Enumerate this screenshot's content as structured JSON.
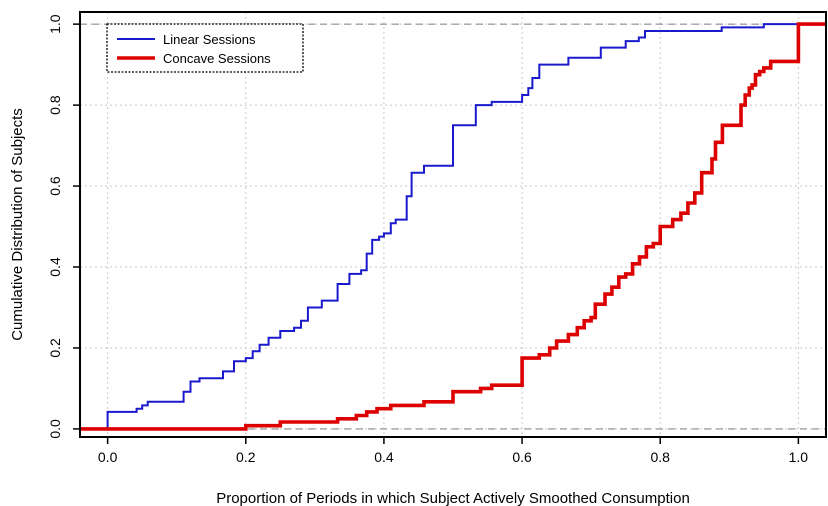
{
  "chart_data": {
    "type": "line",
    "step": true,
    "title": "",
    "xlabel": "Proportion of Periods in which Subject Actively Smoothed Consumption",
    "ylabel": "Cumulative Distribution of Subjects",
    "xlim": [
      -0.04,
      1.04
    ],
    "ylim": [
      -0.02,
      1.03
    ],
    "xticks": [
      0.0,
      0.2,
      0.4,
      0.6,
      0.8,
      1.0
    ],
    "xtick_labels": [
      "0.0",
      "0.2",
      "0.4",
      "0.6",
      "0.8",
      "1.0"
    ],
    "yticks": [
      0.0,
      0.2,
      0.4,
      0.6,
      0.8,
      1.0
    ],
    "ytick_labels": [
      "0.0",
      "0.2",
      "0.4",
      "0.6",
      "0.8",
      "1.0"
    ],
    "grid": true,
    "reference_lines_y": [
      0.0,
      1.0
    ],
    "legend_position": "top-left",
    "series": [
      {
        "name": "Linear Sessions",
        "color": "#1a1acc",
        "points": [
          [
            -0.04,
            0.0
          ],
          [
            0.0,
            0.0
          ],
          [
            0.0,
            0.042
          ],
          [
            0.042,
            0.042
          ],
          [
            0.042,
            0.05
          ],
          [
            0.05,
            0.05
          ],
          [
            0.05,
            0.058
          ],
          [
            0.058,
            0.058
          ],
          [
            0.058,
            0.067
          ],
          [
            0.11,
            0.067
          ],
          [
            0.11,
            0.092
          ],
          [
            0.12,
            0.092
          ],
          [
            0.12,
            0.117
          ],
          [
            0.133,
            0.117
          ],
          [
            0.133,
            0.125
          ],
          [
            0.167,
            0.125
          ],
          [
            0.167,
            0.142
          ],
          [
            0.183,
            0.142
          ],
          [
            0.183,
            0.167
          ],
          [
            0.2,
            0.167
          ],
          [
            0.2,
            0.175
          ],
          [
            0.21,
            0.175
          ],
          [
            0.21,
            0.192
          ],
          [
            0.22,
            0.192
          ],
          [
            0.22,
            0.208
          ],
          [
            0.233,
            0.208
          ],
          [
            0.233,
            0.225
          ],
          [
            0.25,
            0.225
          ],
          [
            0.25,
            0.242
          ],
          [
            0.27,
            0.242
          ],
          [
            0.27,
            0.25
          ],
          [
            0.28,
            0.25
          ],
          [
            0.28,
            0.267
          ],
          [
            0.29,
            0.267
          ],
          [
            0.29,
            0.3
          ],
          [
            0.31,
            0.3
          ],
          [
            0.31,
            0.317
          ],
          [
            0.333,
            0.317
          ],
          [
            0.333,
            0.358
          ],
          [
            0.35,
            0.358
          ],
          [
            0.35,
            0.383
          ],
          [
            0.367,
            0.383
          ],
          [
            0.367,
            0.392
          ],
          [
            0.375,
            0.392
          ],
          [
            0.375,
            0.433
          ],
          [
            0.383,
            0.433
          ],
          [
            0.383,
            0.467
          ],
          [
            0.393,
            0.467
          ],
          [
            0.393,
            0.475
          ],
          [
            0.4,
            0.475
          ],
          [
            0.4,
            0.483
          ],
          [
            0.41,
            0.483
          ],
          [
            0.41,
            0.508
          ],
          [
            0.417,
            0.508
          ],
          [
            0.417,
            0.517
          ],
          [
            0.433,
            0.517
          ],
          [
            0.433,
            0.575
          ],
          [
            0.44,
            0.575
          ],
          [
            0.44,
            0.633
          ],
          [
            0.458,
            0.633
          ],
          [
            0.458,
            0.65
          ],
          [
            0.5,
            0.65
          ],
          [
            0.5,
            0.75
          ],
          [
            0.533,
            0.75
          ],
          [
            0.533,
            0.8
          ],
          [
            0.556,
            0.8
          ],
          [
            0.556,
            0.808
          ],
          [
            0.6,
            0.808
          ],
          [
            0.6,
            0.825
          ],
          [
            0.609,
            0.825
          ],
          [
            0.609,
            0.842
          ],
          [
            0.615,
            0.842
          ],
          [
            0.615,
            0.867
          ],
          [
            0.625,
            0.867
          ],
          [
            0.625,
            0.9
          ],
          [
            0.667,
            0.9
          ],
          [
            0.667,
            0.917
          ],
          [
            0.714,
            0.917
          ],
          [
            0.714,
            0.942
          ],
          [
            0.75,
            0.942
          ],
          [
            0.75,
            0.958
          ],
          [
            0.769,
            0.958
          ],
          [
            0.769,
            0.967
          ],
          [
            0.778,
            0.967
          ],
          [
            0.778,
            0.983
          ],
          [
            0.889,
            0.983
          ],
          [
            0.889,
            0.992
          ],
          [
            0.95,
            0.992
          ],
          [
            0.95,
            1.0
          ],
          [
            1.04,
            1.0
          ]
        ]
      },
      {
        "name": "Concave Sessions",
        "color": "#dd0000",
        "points": [
          [
            -0.04,
            0.0
          ],
          [
            0.2,
            0.0
          ],
          [
            0.2,
            0.008
          ],
          [
            0.25,
            0.008
          ],
          [
            0.25,
            0.017
          ],
          [
            0.333,
            0.017
          ],
          [
            0.333,
            0.025
          ],
          [
            0.36,
            0.025
          ],
          [
            0.36,
            0.033
          ],
          [
            0.375,
            0.033
          ],
          [
            0.375,
            0.042
          ],
          [
            0.39,
            0.042
          ],
          [
            0.39,
            0.05
          ],
          [
            0.41,
            0.05
          ],
          [
            0.41,
            0.058
          ],
          [
            0.458,
            0.058
          ],
          [
            0.458,
            0.067
          ],
          [
            0.5,
            0.067
          ],
          [
            0.5,
            0.092
          ],
          [
            0.54,
            0.092
          ],
          [
            0.54,
            0.1
          ],
          [
            0.556,
            0.1
          ],
          [
            0.556,
            0.108
          ],
          [
            0.6,
            0.108
          ],
          [
            0.6,
            0.175
          ],
          [
            0.625,
            0.175
          ],
          [
            0.625,
            0.183
          ],
          [
            0.64,
            0.183
          ],
          [
            0.64,
            0.2
          ],
          [
            0.65,
            0.2
          ],
          [
            0.65,
            0.217
          ],
          [
            0.667,
            0.217
          ],
          [
            0.667,
            0.233
          ],
          [
            0.68,
            0.233
          ],
          [
            0.68,
            0.25
          ],
          [
            0.69,
            0.25
          ],
          [
            0.69,
            0.267
          ],
          [
            0.7,
            0.267
          ],
          [
            0.7,
            0.275
          ],
          [
            0.706,
            0.275
          ],
          [
            0.706,
            0.308
          ],
          [
            0.72,
            0.308
          ],
          [
            0.72,
            0.333
          ],
          [
            0.73,
            0.333
          ],
          [
            0.73,
            0.35
          ],
          [
            0.74,
            0.35
          ],
          [
            0.74,
            0.375
          ],
          [
            0.75,
            0.375
          ],
          [
            0.75,
            0.383
          ],
          [
            0.76,
            0.383
          ],
          [
            0.76,
            0.408
          ],
          [
            0.77,
            0.408
          ],
          [
            0.77,
            0.425
          ],
          [
            0.78,
            0.425
          ],
          [
            0.78,
            0.45
          ],
          [
            0.79,
            0.45
          ],
          [
            0.79,
            0.458
          ],
          [
            0.8,
            0.458
          ],
          [
            0.8,
            0.5
          ],
          [
            0.818,
            0.5
          ],
          [
            0.818,
            0.517
          ],
          [
            0.83,
            0.517
          ],
          [
            0.83,
            0.533
          ],
          [
            0.84,
            0.533
          ],
          [
            0.84,
            0.558
          ],
          [
            0.85,
            0.558
          ],
          [
            0.85,
            0.583
          ],
          [
            0.86,
            0.583
          ],
          [
            0.86,
            0.633
          ],
          [
            0.875,
            0.633
          ],
          [
            0.875,
            0.667
          ],
          [
            0.88,
            0.667
          ],
          [
            0.88,
            0.708
          ],
          [
            0.89,
            0.708
          ],
          [
            0.89,
            0.75
          ],
          [
            0.917,
            0.75
          ],
          [
            0.917,
            0.8
          ],
          [
            0.923,
            0.8
          ],
          [
            0.923,
            0.825
          ],
          [
            0.929,
            0.825
          ],
          [
            0.929,
            0.842
          ],
          [
            0.933,
            0.842
          ],
          [
            0.933,
            0.85
          ],
          [
            0.938,
            0.85
          ],
          [
            0.938,
            0.875
          ],
          [
            0.944,
            0.875
          ],
          [
            0.944,
            0.883
          ],
          [
            0.95,
            0.883
          ],
          [
            0.95,
            0.892
          ],
          [
            0.96,
            0.892
          ],
          [
            0.96,
            0.908
          ],
          [
            1.0,
            0.908
          ],
          [
            1.0,
            1.0
          ],
          [
            1.04,
            1.0
          ]
        ]
      }
    ]
  }
}
